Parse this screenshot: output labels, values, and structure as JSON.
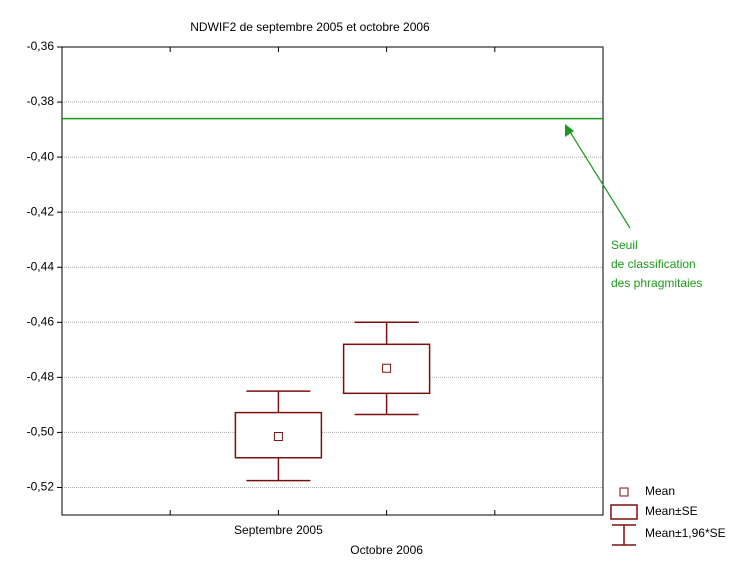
{
  "chart_data": {
    "type": "box",
    "title": "NDWIF2 de septembre 2005 et octobre 2006",
    "categories": [
      "Septembre 2005",
      "Octobre 2006"
    ],
    "color": "#7b1010",
    "series": [
      {
        "name": "Mean",
        "values": [
          -0.5015,
          -0.4767
        ]
      },
      {
        "name": "Mean±SE",
        "low": [
          -0.5092,
          -0.4858
        ],
        "high": [
          -0.4928,
          -0.468
        ]
      },
      {
        "name": "Mean±1,96*SE",
        "low": [
          -0.5175,
          -0.4935
        ],
        "high": [
          -0.485,
          -0.46
        ]
      }
    ],
    "ylim": [
      -0.53,
      -0.36
    ],
    "yticks": [
      {
        "value": -0.52,
        "label": "-0,52"
      },
      {
        "value": -0.5,
        "label": "-0,50"
      },
      {
        "value": -0.48,
        "label": "-0,48"
      },
      {
        "value": -0.46,
        "label": "-0,46"
      },
      {
        "value": -0.44,
        "label": "-0,44"
      },
      {
        "value": -0.42,
        "label": "-0,42"
      },
      {
        "value": -0.4,
        "label": "-0,40"
      },
      {
        "value": -0.38,
        "label": "-0,38"
      },
      {
        "value": -0.36,
        "label": "-0,36"
      }
    ],
    "grid": true,
    "legend": "lower right",
    "reference_line": {
      "value": -0.386,
      "color": "#1a9a1a"
    },
    "annotation": [
      "Seuil",
      "de classification",
      "des phragmitaies"
    ]
  }
}
